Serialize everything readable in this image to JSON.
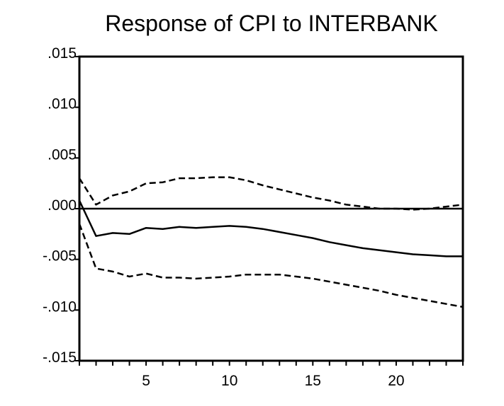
{
  "chart_data": {
    "type": "line",
    "title": "Response of CPI to INTERBANK",
    "xlabel": "",
    "ylabel": "",
    "x": [
      1,
      2,
      3,
      4,
      5,
      6,
      7,
      8,
      9,
      10,
      11,
      12,
      13,
      14,
      15,
      16,
      17,
      18,
      19,
      20,
      21,
      22,
      23,
      24
    ],
    "xlim": [
      1,
      24
    ],
    "ylim": [
      -0.015,
      0.015
    ],
    "x_ticks": [
      5,
      10,
      15,
      20
    ],
    "x_tick_labels": [
      "5",
      "10",
      "15",
      "20"
    ],
    "y_ticks": [
      0.015,
      0.01,
      0.005,
      0.0,
      -0.005,
      -0.01,
      -0.015
    ],
    "y_tick_labels": [
      ".015",
      ".010",
      ".005",
      ".000",
      "-.005",
      "-.010",
      "-.015"
    ],
    "zero_line": true,
    "grid": false,
    "legend": "none",
    "series": [
      {
        "style": "solid",
        "values": [
          0.0008,
          -0.0027,
          -0.0024,
          -0.0025,
          -0.0019,
          -0.002,
          -0.0018,
          -0.0019,
          -0.0018,
          -0.0017,
          -0.0018,
          -0.002,
          -0.0023,
          -0.0026,
          -0.0029,
          -0.0033,
          -0.0036,
          -0.0039,
          -0.0041,
          -0.0043,
          -0.0045,
          -0.0046,
          -0.0047,
          -0.0047
        ]
      },
      {
        "style": "dashed",
        "values": [
          0.003,
          0.0004,
          0.0013,
          0.0017,
          0.0025,
          0.0026,
          0.003,
          0.003,
          0.0031,
          0.0031,
          0.0028,
          0.0023,
          0.0019,
          0.0015,
          0.0011,
          0.0008,
          0.0004,
          0.0002,
          0.0,
          0.0,
          -0.0001,
          0.0,
          0.0002,
          0.0004
        ]
      },
      {
        "style": "dashed",
        "values": [
          -0.0015,
          -0.0059,
          -0.0062,
          -0.0067,
          -0.0064,
          -0.0068,
          -0.0068,
          -0.0069,
          -0.0068,
          -0.0067,
          -0.0065,
          -0.0065,
          -0.0065,
          -0.0067,
          -0.0069,
          -0.0072,
          -0.0075,
          -0.0078,
          -0.0081,
          -0.0085,
          -0.0088,
          -0.0091,
          -0.0094,
          -0.0097
        ]
      }
    ]
  }
}
